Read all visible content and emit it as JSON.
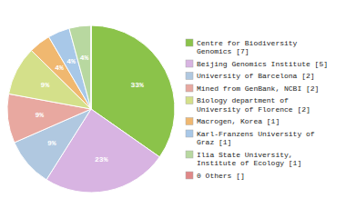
{
  "chart_data": {
    "type": "pie",
    "categories": [
      "Centre for Biodiversity\nGenomics [7]",
      "Beijing Genomics Institute [5]",
      "University of Barcelona [2]",
      "Mined from GenBank, NCBI [2]",
      "Biology department of\nUniversity of Florence [2]",
      "Macrogen, Korea [1]",
      "Karl-Franzens University of\nGraz [1]",
      "Ilia State University,\nInstitute of Ecology [1]",
      "0 Others []"
    ],
    "values": [
      33,
      23,
      9,
      9,
      9,
      4,
      4,
      4,
      0
    ],
    "value_labels": [
      "33%",
      "23%",
      "9%",
      "9%",
      "9%",
      "4%",
      "4%",
      "4%",
      null
    ],
    "colors": [
      "#8bc34a",
      "#d8b4e2",
      "#b0c8e0",
      "#e8a8a0",
      "#d4e08a",
      "#f0b870",
      "#a8c8e8",
      "#b8d8a0",
      "#e08888"
    ],
    "data_labels": true,
    "legend": "right"
  }
}
